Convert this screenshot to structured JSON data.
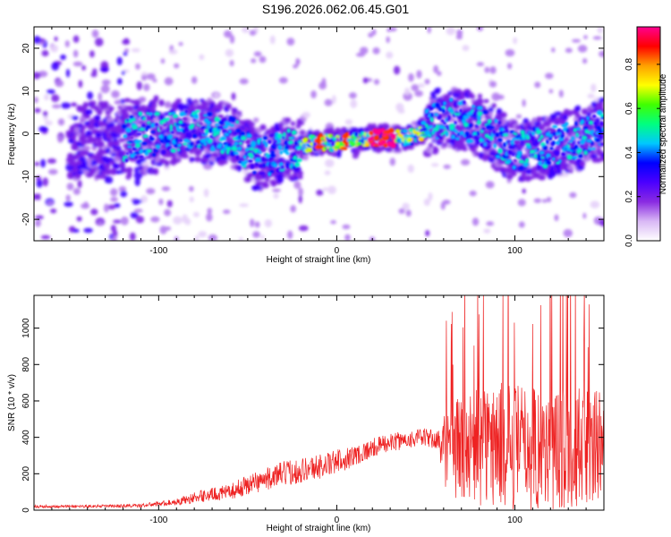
{
  "title": "S196.2026.062.06.45.G01",
  "chart_data": [
    {
      "type": "heatmap",
      "xlabel": "Height of straight line (km)",
      "ylabel": "Frequency (Hz)",
      "xlim": [
        -170,
        150
      ],
      "ylim": [
        -25,
        25
      ],
      "xticks": [
        -100,
        0,
        100
      ],
      "yticks": [
        -20,
        -10,
        0,
        10,
        20
      ],
      "colorbar": {
        "label": "Normalized spectral amplitude",
        "range": [
          0,
          0.97
        ],
        "ticks": [
          "0.0",
          "0.2",
          "0.4",
          "0.6",
          "0.8"
        ],
        "colors": [
          "#ffffff",
          "#d9b8f5",
          "#8a2be2",
          "#4b00ff",
          "#0000ff",
          "#00c8ff",
          "#00ff80",
          "#40ff00",
          "#ffff00",
          "#ffa000",
          "#ff0000",
          "#ff0090"
        ]
      },
      "ridge": {
        "description_points_x": [
          -170,
          -150,
          -120,
          -100,
          -80,
          -60,
          -45,
          -30,
          -10,
          0,
          20,
          40,
          50,
          60,
          80,
          100,
          120,
          150
        ],
        "description_points_y": [
          0,
          -2,
          -1,
          0,
          1,
          0,
          -6,
          -4,
          -2,
          -2,
          -1,
          -1,
          1,
          4,
          2,
          -4,
          -3,
          1
        ]
      }
    },
    {
      "type": "line",
      "xlabel": "Height of straight line (km)",
      "ylabel": "SNR (10 * v/v)",
      "xlim": [
        -170,
        150
      ],
      "ylim": [
        0,
        1180
      ],
      "xticks": [
        -100,
        0,
        100
      ],
      "yticks": [
        0,
        200,
        400,
        600,
        800,
        1000
      ],
      "color": "#ee2222",
      "envelope": {
        "x": [
          -170,
          -130,
          -110,
          -90,
          -75,
          -60,
          -50,
          -40,
          -30,
          -20,
          -5,
          10,
          25,
          40,
          50,
          57,
          62,
          75,
          90,
          105,
          120,
          135,
          150
        ],
        "mean": [
          20,
          22,
          25,
          45,
          80,
          100,
          140,
          170,
          200,
          220,
          250,
          300,
          360,
          390,
          400,
          380,
          330,
          350,
          360,
          350,
          340,
          350,
          340
        ],
        "amp": [
          8,
          8,
          10,
          18,
          35,
          40,
          60,
          60,
          70,
          70,
          70,
          60,
          50,
          50,
          50,
          60,
          250,
          320,
          350,
          350,
          350,
          330,
          320
        ]
      }
    }
  ]
}
